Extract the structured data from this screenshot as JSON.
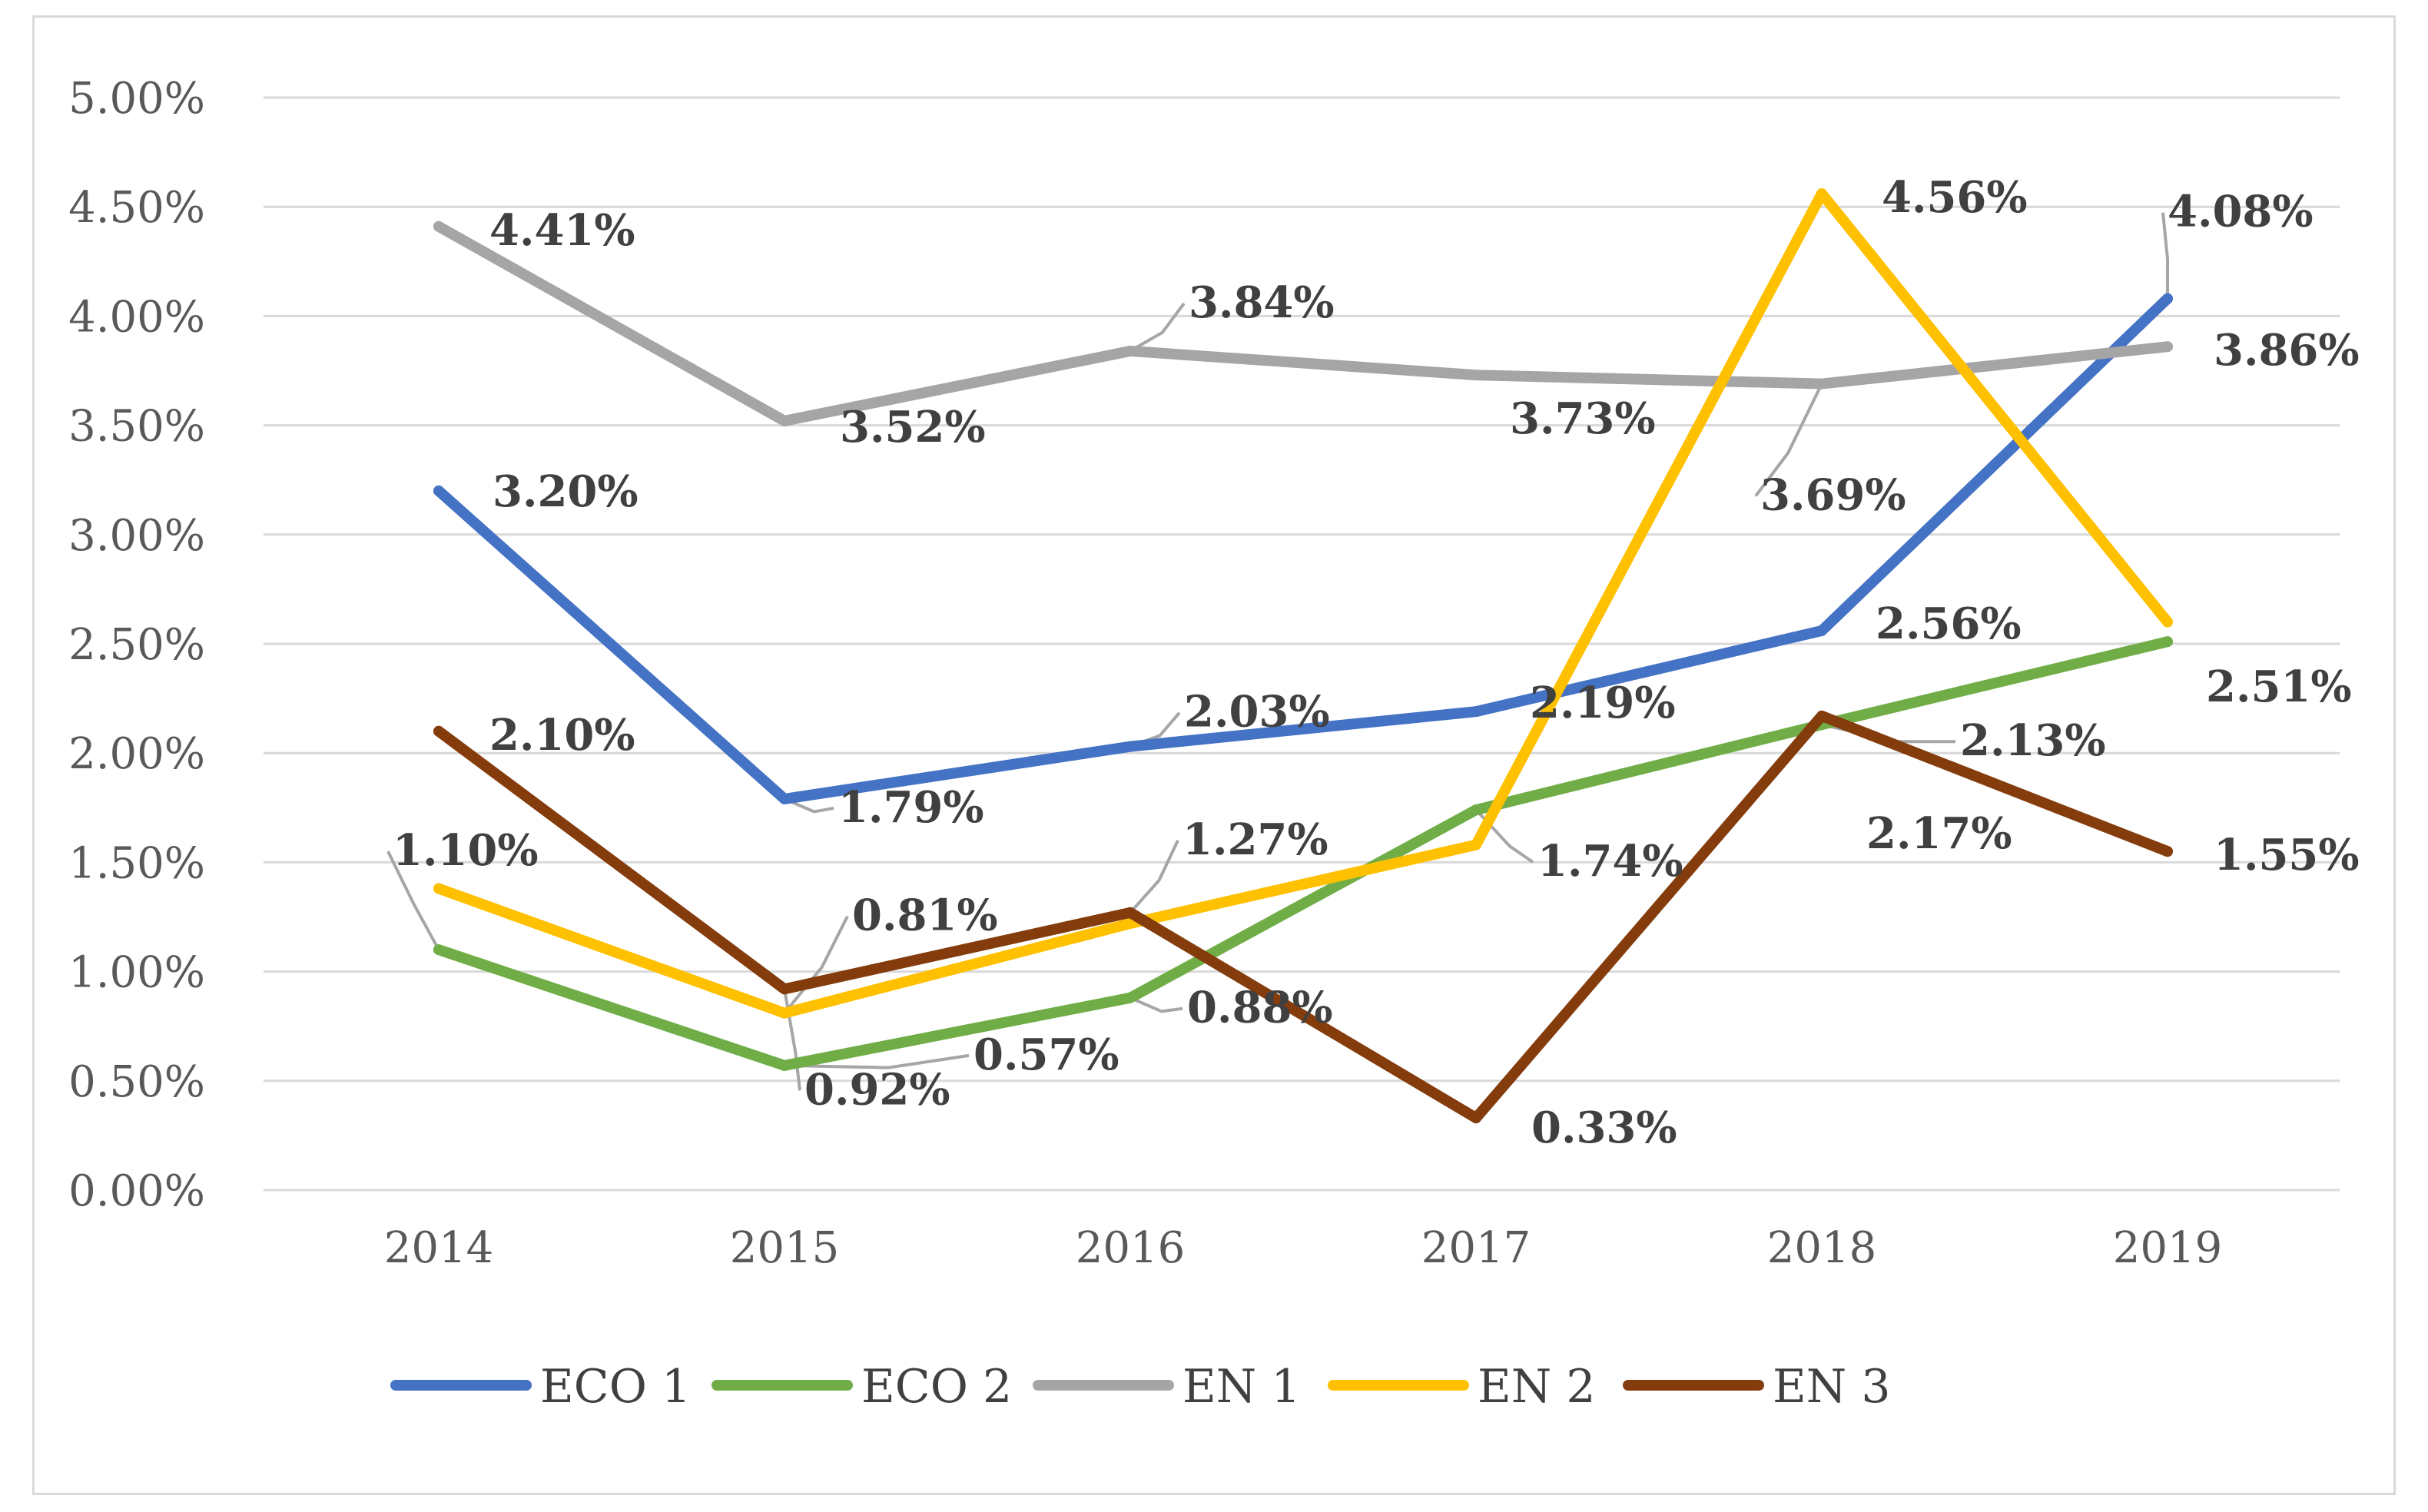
{
  "chart_data": {
    "type": "line",
    "categories": [
      "2014",
      "2015",
      "2016",
      "2017",
      "2018",
      "2019"
    ],
    "y_ticks": [
      "0.00%",
      "0.50%",
      "1.00%",
      "1.50%",
      "2.00%",
      "2.50%",
      "3.00%",
      "3.50%",
      "4.00%",
      "4.50%",
      "5.00%"
    ],
    "ylim": [
      0,
      0.05
    ],
    "grid": true,
    "legend_position": "bottom",
    "series": [
      {
        "name": "ECO 1",
        "color": "#4472c4",
        "values": [
          0.032,
          0.0179,
          0.0203,
          0.0219,
          0.0256,
          0.0408
        ],
        "labels": [
          "3.20%",
          "1.79%",
          "2.03%",
          "2.19%",
          "2.56%",
          "4.08%"
        ]
      },
      {
        "name": "ECO 2",
        "color": "#70ad47",
        "values": [
          0.011,
          0.0057,
          0.0088,
          0.0174,
          0.0213,
          0.0251
        ],
        "labels": [
          "1.10%",
          "0.57%",
          "0.88%",
          "1.74%",
          "2.13%",
          "2.51%"
        ]
      },
      {
        "name": "EN 1",
        "color": "#a5a5a5",
        "values": [
          0.0441,
          0.0352,
          0.0384,
          0.0373,
          0.0369,
          0.0386
        ],
        "labels": [
          "4.41%",
          "3.52%",
          "3.84%",
          "3.73%",
          "3.69%",
          "3.86%"
        ]
      },
      {
        "name": "EN 2",
        "color": "#ffc000",
        "values": [
          0.0138,
          0.0081,
          0.0122,
          0.0158,
          0.0456,
          0.026
        ],
        "labels": [
          "",
          "0.81%",
          "",
          "",
          "4.56%",
          ""
        ]
      },
      {
        "name": "EN 3",
        "color": "#843c0c",
        "values": [
          0.021,
          0.0092,
          0.0127,
          0.0033,
          0.0217,
          0.0155
        ],
        "labels": [
          "2.10%",
          "0.92%",
          "1.27%",
          "0.33%",
          "2.17%",
          "1.55%"
        ]
      }
    ]
  }
}
